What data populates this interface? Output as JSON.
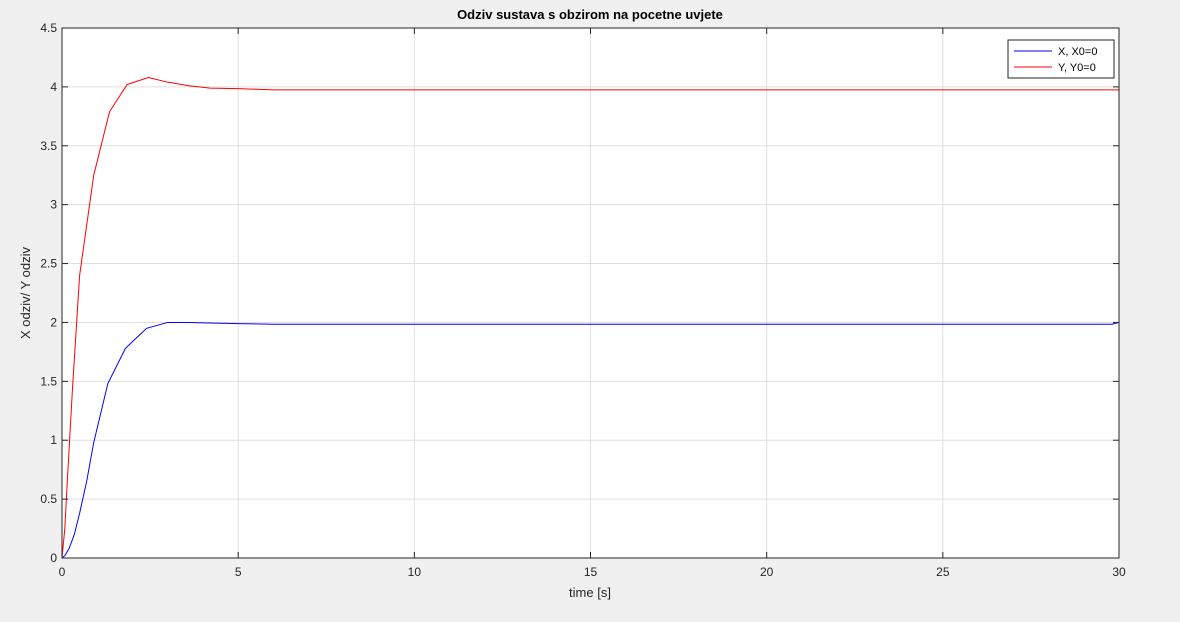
{
  "chart_data": {
    "type": "line",
    "title": "Odziv sustava s obzirom na pocetne uvjete",
    "xlabel": "time [s]",
    "ylabel": "X odziv/ Y odziv",
    "xlim": [
      0,
      30
    ],
    "ylim": [
      0,
      4.5
    ],
    "xticks": [
      0,
      5,
      10,
      15,
      20,
      25,
      30
    ],
    "xtick_labels": [
      "0",
      "5",
      "10",
      "15",
      "20",
      "25",
      "30"
    ],
    "yticks": [
      0,
      0.5,
      1,
      1.5,
      2,
      2.5,
      3,
      3.5,
      4,
      4.5
    ],
    "ytick_labels": [
      "0",
      "0.5",
      "1",
      "1.5",
      "2",
      "2.5",
      "3",
      "3.5",
      "4",
      "4.5"
    ],
    "grid": true,
    "legend_position": "top-right",
    "series": [
      {
        "name": "X, X0=0",
        "color": "#0000ff",
        "x": [
          0,
          0.08,
          0.2,
          0.35,
          0.5,
          0.7,
          0.9,
          1.3,
          1.8,
          2.4,
          3.0,
          3.6,
          4.2,
          5.0,
          6.0,
          10,
          15,
          20,
          25,
          29.8,
          30
        ],
        "y": [
          0,
          0.02,
          0.08,
          0.2,
          0.38,
          0.65,
          0.98,
          1.48,
          1.78,
          1.95,
          2.0,
          2.0,
          1.995,
          1.99,
          1.985,
          1.985,
          1.985,
          1.985,
          1.985,
          1.985,
          2.0
        ]
      },
      {
        "name": "Y, Y0=0",
        "color": "#ff0000",
        "x": [
          0,
          0.08,
          0.15,
          0.3,
          0.5,
          0.9,
          1.35,
          1.85,
          2.45,
          3.0,
          3.6,
          4.2,
          5.0,
          6.0,
          10,
          15,
          20,
          25,
          30
        ],
        "y": [
          0,
          0.25,
          0.65,
          1.45,
          2.4,
          3.25,
          3.79,
          4.02,
          4.08,
          4.04,
          4.01,
          3.99,
          3.985,
          3.975,
          3.975,
          3.975,
          3.975,
          3.975,
          3.975
        ]
      }
    ]
  }
}
